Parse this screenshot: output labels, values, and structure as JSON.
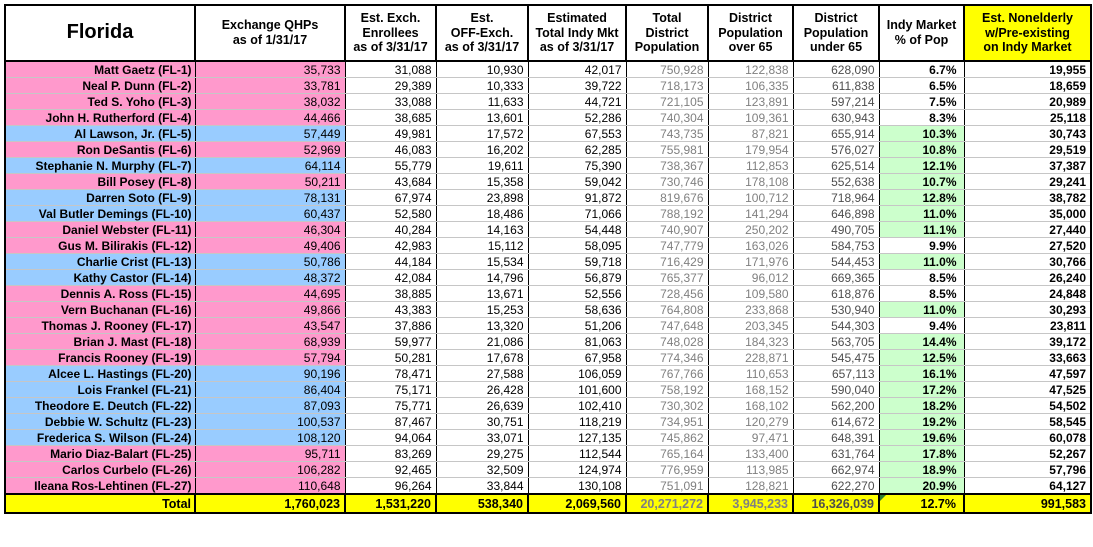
{
  "title_cell": "Florida",
  "columns": {
    "state": "Florida",
    "qhp": "Exchange QHPs\nas of 1/31/17",
    "enrollees": "Est. Exch.\nEnrollees\nas of 3/31/17",
    "off_exch": "Est.\nOFF-Exch.\nas of 3/31/17",
    "total_indy": "Estimated\nTotal Indy Mkt\nas of 3/31/17",
    "population": "Total\nDistrict\nPopulation",
    "over_65": "District\nPopulation\nover 65",
    "under_65": "District\nPopulation\nunder 65",
    "indy_pct": "Indy Market\n% of Pop",
    "preexisting": "Est. Nonelderly\nw/Pre-existing\non Indy Market"
  },
  "rows": [
    {
      "name": "Matt Gaetz (FL-1)",
      "party": "R",
      "qhp": "35,733",
      "enrollees": "31,088",
      "off_exch": "10,930",
      "total_indy": "42,017",
      "population": "750,928",
      "over_65": "122,838",
      "under_65": "628,090",
      "indy_pct": "6.7%",
      "pct_highlight": false,
      "preexisting": "19,955"
    },
    {
      "name": "Neal P. Dunn (FL-2)",
      "party": "R",
      "qhp": "33,781",
      "enrollees": "29,389",
      "off_exch": "10,333",
      "total_indy": "39,722",
      "population": "718,173",
      "over_65": "106,335",
      "under_65": "611,838",
      "indy_pct": "6.5%",
      "pct_highlight": false,
      "preexisting": "18,659"
    },
    {
      "name": "Ted S. Yoho (FL-3)",
      "party": "R",
      "qhp": "38,032",
      "enrollees": "33,088",
      "off_exch": "11,633",
      "total_indy": "44,721",
      "population": "721,105",
      "over_65": "123,891",
      "under_65": "597,214",
      "indy_pct": "7.5%",
      "pct_highlight": false,
      "preexisting": "20,989"
    },
    {
      "name": "John H. Rutherford (FL-4)",
      "party": "R",
      "qhp": "44,466",
      "enrollees": "38,685",
      "off_exch": "13,601",
      "total_indy": "52,286",
      "population": "740,304",
      "over_65": "109,361",
      "under_65": "630,943",
      "indy_pct": "8.3%",
      "pct_highlight": false,
      "preexisting": "25,118"
    },
    {
      "name": "Al Lawson, Jr. (FL-5)",
      "party": "D",
      "qhp": "57,449",
      "enrollees": "49,981",
      "off_exch": "17,572",
      "total_indy": "67,553",
      "population": "743,735",
      "over_65": "87,821",
      "under_65": "655,914",
      "indy_pct": "10.3%",
      "pct_highlight": true,
      "preexisting": "30,743"
    },
    {
      "name": "Ron DeSantis (FL-6)",
      "party": "R",
      "qhp": "52,969",
      "enrollees": "46,083",
      "off_exch": "16,202",
      "total_indy": "62,285",
      "population": "755,981",
      "over_65": "179,954",
      "under_65": "576,027",
      "indy_pct": "10.8%",
      "pct_highlight": true,
      "preexisting": "29,519"
    },
    {
      "name": "Stephanie N. Murphy (FL-7)",
      "party": "D",
      "qhp": "64,114",
      "enrollees": "55,779",
      "off_exch": "19,611",
      "total_indy": "75,390",
      "population": "738,367",
      "over_65": "112,853",
      "under_65": "625,514",
      "indy_pct": "12.1%",
      "pct_highlight": true,
      "preexisting": "37,387"
    },
    {
      "name": "Bill Posey (FL-8)",
      "party": "R",
      "qhp": "50,211",
      "enrollees": "43,684",
      "off_exch": "15,358",
      "total_indy": "59,042",
      "population": "730,746",
      "over_65": "178,108",
      "under_65": "552,638",
      "indy_pct": "10.7%",
      "pct_highlight": true,
      "preexisting": "29,241"
    },
    {
      "name": "Darren Soto (FL-9)",
      "party": "D",
      "qhp": "78,131",
      "enrollees": "67,974",
      "off_exch": "23,898",
      "total_indy": "91,872",
      "population": "819,676",
      "over_65": "100,712",
      "under_65": "718,964",
      "indy_pct": "12.8%",
      "pct_highlight": true,
      "preexisting": "38,782"
    },
    {
      "name": "Val Butler Demings (FL-10)",
      "party": "D",
      "qhp": "60,437",
      "enrollees": "52,580",
      "off_exch": "18,486",
      "total_indy": "71,066",
      "population": "788,192",
      "over_65": "141,294",
      "under_65": "646,898",
      "indy_pct": "11.0%",
      "pct_highlight": true,
      "preexisting": "35,000"
    },
    {
      "name": "Daniel Webster (FL-11)",
      "party": "R",
      "qhp": "46,304",
      "enrollees": "40,284",
      "off_exch": "14,163",
      "total_indy": "54,448",
      "population": "740,907",
      "over_65": "250,202",
      "under_65": "490,705",
      "indy_pct": "11.1%",
      "pct_highlight": true,
      "preexisting": "27,440"
    },
    {
      "name": "Gus M. Bilirakis (FL-12)",
      "party": "R",
      "qhp": "49,406",
      "enrollees": "42,983",
      "off_exch": "15,112",
      "total_indy": "58,095",
      "population": "747,779",
      "over_65": "163,026",
      "under_65": "584,753",
      "indy_pct": "9.9%",
      "pct_highlight": false,
      "preexisting": "27,520"
    },
    {
      "name": "Charlie Crist (FL-13)",
      "party": "D",
      "qhp": "50,786",
      "enrollees": "44,184",
      "off_exch": "15,534",
      "total_indy": "59,718",
      "population": "716,429",
      "over_65": "171,976",
      "under_65": "544,453",
      "indy_pct": "11.0%",
      "pct_highlight": true,
      "preexisting": "30,766"
    },
    {
      "name": "Kathy Castor (FL-14)",
      "party": "D",
      "qhp": "48,372",
      "enrollees": "42,084",
      "off_exch": "14,796",
      "total_indy": "56,879",
      "population": "765,377",
      "over_65": "96,012",
      "under_65": "669,365",
      "indy_pct": "8.5%",
      "pct_highlight": false,
      "preexisting": "26,240"
    },
    {
      "name": "Dennis A. Ross (FL-15)",
      "party": "R",
      "qhp": "44,695",
      "enrollees": "38,885",
      "off_exch": "13,671",
      "total_indy": "52,556",
      "population": "728,456",
      "over_65": "109,580",
      "under_65": "618,876",
      "indy_pct": "8.5%",
      "pct_highlight": false,
      "preexisting": "24,848"
    },
    {
      "name": "Vern Buchanan (FL-16)",
      "party": "R",
      "qhp": "49,866",
      "enrollees": "43,383",
      "off_exch": "15,253",
      "total_indy": "58,636",
      "population": "764,808",
      "over_65": "233,868",
      "under_65": "530,940",
      "indy_pct": "11.0%",
      "pct_highlight": true,
      "preexisting": "30,293"
    },
    {
      "name": "Thomas J. Rooney (FL-17)",
      "party": "R",
      "qhp": "43,547",
      "enrollees": "37,886",
      "off_exch": "13,320",
      "total_indy": "51,206",
      "population": "747,648",
      "over_65": "203,345",
      "under_65": "544,303",
      "indy_pct": "9.4%",
      "pct_highlight": false,
      "preexisting": "23,811"
    },
    {
      "name": "Brian J. Mast (FL-18)",
      "party": "R",
      "qhp": "68,939",
      "enrollees": "59,977",
      "off_exch": "21,086",
      "total_indy": "81,063",
      "population": "748,028",
      "over_65": "184,323",
      "under_65": "563,705",
      "indy_pct": "14.4%",
      "pct_highlight": true,
      "preexisting": "39,172"
    },
    {
      "name": "Francis Rooney (FL-19)",
      "party": "R",
      "qhp": "57,794",
      "enrollees": "50,281",
      "off_exch": "17,678",
      "total_indy": "67,958",
      "population": "774,346",
      "over_65": "228,871",
      "under_65": "545,475",
      "indy_pct": "12.5%",
      "pct_highlight": true,
      "preexisting": "33,663"
    },
    {
      "name": "Alcee L. Hastings (FL-20)",
      "party": "D",
      "qhp": "90,196",
      "enrollees": "78,471",
      "off_exch": "27,588",
      "total_indy": "106,059",
      "population": "767,766",
      "over_65": "110,653",
      "under_65": "657,113",
      "indy_pct": "16.1%",
      "pct_highlight": true,
      "preexisting": "47,597"
    },
    {
      "name": "Lois Frankel (FL-21)",
      "party": "D",
      "qhp": "86,404",
      "enrollees": "75,171",
      "off_exch": "26,428",
      "total_indy": "101,600",
      "population": "758,192",
      "over_65": "168,152",
      "under_65": "590,040",
      "indy_pct": "17.2%",
      "pct_highlight": true,
      "preexisting": "47,525"
    },
    {
      "name": "Theodore E. Deutch (FL-22)",
      "party": "D",
      "qhp": "87,093",
      "enrollees": "75,771",
      "off_exch": "26,639",
      "total_indy": "102,410",
      "population": "730,302",
      "over_65": "168,102",
      "under_65": "562,200",
      "indy_pct": "18.2%",
      "pct_highlight": true,
      "preexisting": "54,502"
    },
    {
      "name": "Debbie W. Schultz (FL-23)",
      "party": "D",
      "qhp": "100,537",
      "enrollees": "87,467",
      "off_exch": "30,751",
      "total_indy": "118,219",
      "population": "734,951",
      "over_65": "120,279",
      "under_65": "614,672",
      "indy_pct": "19.2%",
      "pct_highlight": true,
      "preexisting": "58,545"
    },
    {
      "name": "Frederica S. Wilson (FL-24)",
      "party": "D",
      "qhp": "108,120",
      "enrollees": "94,064",
      "off_exch": "33,071",
      "total_indy": "127,135",
      "population": "745,862",
      "over_65": "97,471",
      "under_65": "648,391",
      "indy_pct": "19.6%",
      "pct_highlight": true,
      "preexisting": "60,078"
    },
    {
      "name": "Mario Diaz-Balart (FL-25)",
      "party": "R",
      "qhp": "95,711",
      "enrollees": "83,269",
      "off_exch": "29,275",
      "total_indy": "112,544",
      "population": "765,164",
      "over_65": "133,400",
      "under_65": "631,764",
      "indy_pct": "17.8%",
      "pct_highlight": true,
      "preexisting": "52,267"
    },
    {
      "name": "Carlos Curbelo (FL-26)",
      "party": "R",
      "qhp": "106,282",
      "enrollees": "92,465",
      "off_exch": "32,509",
      "total_indy": "124,974",
      "population": "776,959",
      "over_65": "113,985",
      "under_65": "662,974",
      "indy_pct": "18.9%",
      "pct_highlight": true,
      "preexisting": "57,796"
    },
    {
      "name": "Ileana Ros-Lehtinen (FL-27)",
      "party": "R",
      "qhp": "110,648",
      "enrollees": "96,264",
      "off_exch": "33,844",
      "total_indy": "130,108",
      "population": "751,091",
      "over_65": "128,821",
      "under_65": "622,270",
      "indy_pct": "20.9%",
      "pct_highlight": true,
      "preexisting": "64,127"
    }
  ],
  "totals": {
    "label": "Total",
    "qhp": "1,760,023",
    "enrollees": "1,531,220",
    "off_exch": "538,340",
    "total_indy": "2,069,560",
    "population": "20,271,272",
    "over_65": "3,945,233",
    "under_65": "16,326,039",
    "indy_pct": "12.7%",
    "preexisting": "991,583"
  },
  "colors": {
    "republican_row": "#FF99CC",
    "democrat_row": "#99CCFF",
    "pct_highlight": "#CCFFCC",
    "total_and_preexisting_header": "#FFFF00"
  }
}
